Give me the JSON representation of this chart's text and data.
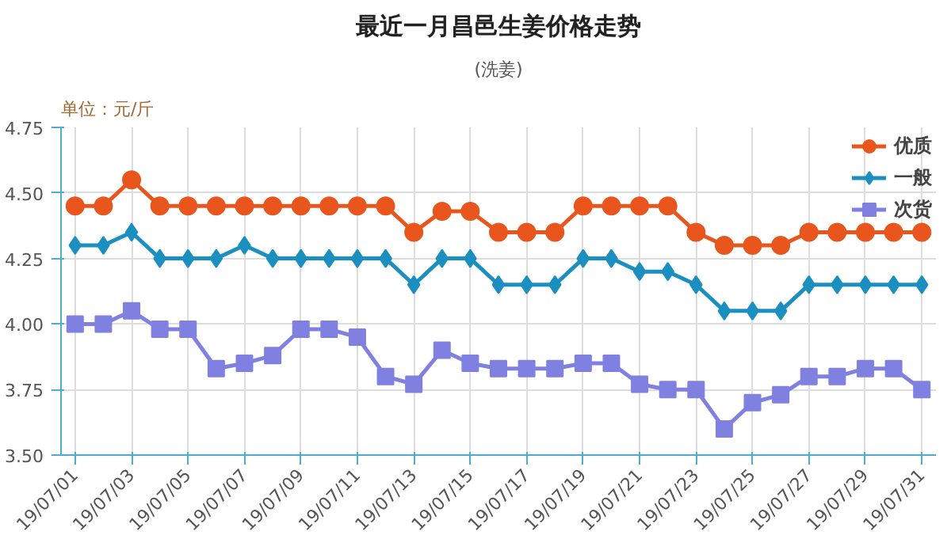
{
  "chart_data": {
    "type": "line",
    "title": "最近一月昌邑生姜价格走势",
    "subtitle": "(洗姜)",
    "ylabel": "单位：元/斤",
    "categories": [
      "19/07/01",
      null,
      "19/07/03",
      null,
      "19/07/05",
      null,
      "19/07/07",
      null,
      "19/07/09",
      null,
      "19/07/11",
      null,
      "19/07/13",
      null,
      "19/07/15",
      null,
      "19/07/17",
      null,
      "19/07/19",
      null,
      "19/07/21",
      null,
      "19/07/23",
      null,
      "19/07/25",
      null,
      "19/07/27",
      null,
      "19/07/29",
      null,
      "19/07/31"
    ],
    "series": [
      {
        "name": "优质",
        "color": "#e8561e",
        "marker": "circle",
        "values": [
          4.45,
          4.45,
          4.55,
          4.45,
          4.45,
          4.45,
          4.45,
          4.45,
          4.45,
          4.45,
          4.45,
          4.45,
          4.35,
          4.43,
          4.43,
          4.35,
          4.35,
          4.35,
          4.45,
          4.45,
          4.45,
          4.45,
          4.35,
          4.3,
          4.3,
          4.3,
          4.35,
          4.35,
          4.35,
          4.35,
          4.35
        ]
      },
      {
        "name": "一般",
        "color": "#1a8fc0",
        "marker": "diamond",
        "values": [
          4.3,
          4.3,
          4.35,
          4.25,
          4.25,
          4.25,
          4.3,
          4.25,
          4.25,
          4.25,
          4.25,
          4.25,
          4.15,
          4.25,
          4.25,
          4.15,
          4.15,
          4.15,
          4.25,
          4.25,
          4.2,
          4.2,
          4.15,
          4.05,
          4.05,
          4.05,
          4.15,
          4.15,
          4.15,
          4.15,
          4.15
        ]
      },
      {
        "name": "次货",
        "color": "#8080e0",
        "marker": "square",
        "values": [
          4.0,
          4.0,
          4.05,
          3.98,
          3.98,
          3.83,
          3.85,
          3.88,
          3.98,
          3.98,
          3.95,
          3.8,
          3.77,
          3.9,
          3.85,
          3.83,
          3.83,
          3.83,
          3.85,
          3.85,
          3.77,
          3.75,
          3.75,
          3.6,
          3.7,
          3.73,
          3.8,
          3.8,
          3.83,
          3.83,
          3.75
        ]
      }
    ],
    "ylim": [
      3.5,
      4.75
    ],
    "yticks": [
      {
        "value": 3.5,
        "label": "3.50"
      },
      {
        "value": 3.75,
        "label": "3.75"
      },
      {
        "value": 4.0,
        "label": "4.00"
      },
      {
        "value": 4.25,
        "label": "4.25"
      },
      {
        "value": 4.5,
        "label": "4.50"
      },
      {
        "value": 4.75,
        "label": "4.75"
      }
    ],
    "grid": true,
    "legend": "top right",
    "line_style": "solid"
  }
}
